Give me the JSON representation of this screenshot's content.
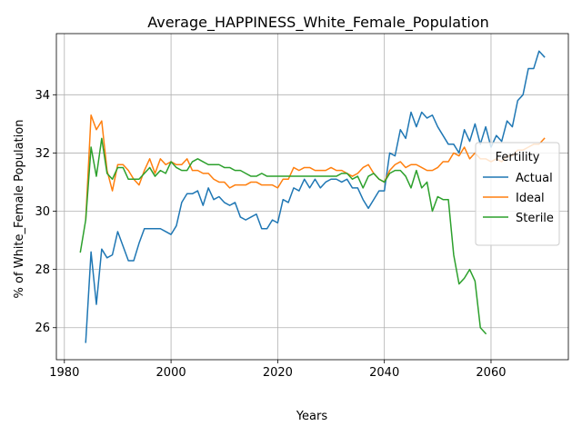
{
  "chart_data": {
    "type": "line",
    "title": "Average_HAPPINESS_White_Female_Population",
    "xlabel": "Years",
    "ylabel": "% of White_Female Population",
    "xlim": [
      1978.5,
      2074.5
    ],
    "ylim": [
      24.9,
      36.1
    ],
    "xticks": [
      1980,
      2000,
      2020,
      2040,
      2060
    ],
    "yticks": [
      26,
      28,
      30,
      32,
      34
    ],
    "grid": true,
    "legend": {
      "title": "Fertility",
      "placement": "center-right"
    },
    "series": [
      {
        "name": "Actual",
        "color": "#1f77b4",
        "x": [
          1984,
          1985,
          1986,
          1987,
          1988,
          1989,
          1990,
          1991,
          1992,
          1993,
          1994,
          1995,
          1996,
          1997,
          1998,
          1999,
          2000,
          2001,
          2002,
          2003,
          2004,
          2005,
          2006,
          2007,
          2008,
          2009,
          2010,
          2011,
          2012,
          2013,
          2014,
          2015,
          2016,
          2017,
          2018,
          2019,
          2020,
          2021,
          2022,
          2023,
          2024,
          2025,
          2026,
          2027,
          2028,
          2029,
          2030,
          2031,
          2032,
          2033,
          2034,
          2035,
          2036,
          2037,
          2038,
          2039,
          2040,
          2041,
          2042,
          2043,
          2044,
          2045,
          2046,
          2047,
          2048,
          2049,
          2050,
          2051,
          2052,
          2053,
          2054,
          2055,
          2056,
          2057,
          2058,
          2059,
          2060,
          2061,
          2062,
          2063,
          2064,
          2065,
          2066,
          2067,
          2068,
          2069,
          2070
        ],
        "values": [
          25.5,
          28.6,
          26.8,
          28.7,
          28.4,
          28.5,
          29.3,
          28.8,
          28.3,
          28.3,
          28.9,
          29.4,
          29.4,
          29.4,
          29.4,
          29.3,
          29.2,
          29.5,
          30.3,
          30.6,
          30.6,
          30.7,
          30.2,
          30.8,
          30.4,
          30.5,
          30.3,
          30.2,
          30.3,
          29.8,
          29.7,
          29.8,
          29.9,
          29.4,
          29.4,
          29.7,
          29.6,
          30.4,
          30.3,
          30.8,
          30.7,
          31.1,
          30.8,
          31.1,
          30.8,
          31.0,
          31.1,
          31.1,
          31.0,
          31.1,
          30.8,
          30.8,
          30.4,
          30.1,
          30.4,
          30.7,
          30.7,
          32.0,
          31.9,
          32.8,
          32.5,
          33.4,
          32.9,
          33.4,
          33.2,
          33.3,
          32.9,
          32.6,
          32.3,
          32.3,
          32.0,
          32.8,
          32.4,
          33.0,
          32.3,
          32.9,
          32.2,
          32.6,
          32.4,
          33.1,
          32.9,
          33.8,
          34.0,
          34.9,
          34.9,
          35.5,
          35.3
        ]
      },
      {
        "name": "Ideal",
        "color": "#ff7f0e",
        "x": [
          1984,
          1985,
          1986,
          1987,
          1988,
          1989,
          1990,
          1991,
          1992,
          1993,
          1994,
          1995,
          1996,
          1997,
          1998,
          1999,
          2000,
          2001,
          2002,
          2003,
          2004,
          2005,
          2006,
          2007,
          2008,
          2009,
          2010,
          2011,
          2012,
          2013,
          2014,
          2015,
          2016,
          2017,
          2018,
          2019,
          2020,
          2021,
          2022,
          2023,
          2024,
          2025,
          2026,
          2027,
          2028,
          2029,
          2030,
          2031,
          2032,
          2033,
          2034,
          2035,
          2036,
          2037,
          2038,
          2039,
          2040,
          2041,
          2042,
          2043,
          2044,
          2045,
          2046,
          2047,
          2048,
          2049,
          2050,
          2051,
          2052,
          2053,
          2054,
          2055,
          2056,
          2057,
          2058,
          2059,
          2060,
          2061,
          2062,
          2063,
          2064,
          2065,
          2066,
          2067,
          2068,
          2069,
          2070
        ],
        "values": [
          29.7,
          33.3,
          32.8,
          33.1,
          31.4,
          30.7,
          31.6,
          31.6,
          31.4,
          31.1,
          30.9,
          31.4,
          31.8,
          31.3,
          31.8,
          31.6,
          31.7,
          31.6,
          31.6,
          31.8,
          31.4,
          31.4,
          31.3,
          31.3,
          31.1,
          31.0,
          31.0,
          30.8,
          30.9,
          30.9,
          30.9,
          31.0,
          31.0,
          30.9,
          30.9,
          30.9,
          30.8,
          31.1,
          31.1,
          31.5,
          31.4,
          31.5,
          31.5,
          31.4,
          31.4,
          31.4,
          31.5,
          31.4,
          31.4,
          31.3,
          31.2,
          31.3,
          31.5,
          31.6,
          31.3,
          31.1,
          31.0,
          31.4,
          31.6,
          31.7,
          31.5,
          31.6,
          31.6,
          31.5,
          31.4,
          31.4,
          31.5,
          31.7,
          31.7,
          32.0,
          31.9,
          32.2,
          31.8,
          32.0,
          31.8,
          31.8,
          31.7,
          31.8,
          31.7,
          31.9,
          31.9,
          32.1,
          32.1,
          32.2,
          32.3,
          32.3,
          32.5
        ]
      },
      {
        "name": "Sterile",
        "color": "#2ca02c",
        "x": [
          1983,
          1984,
          1985,
          1986,
          1987,
          1988,
          1989,
          1990,
          1991,
          1992,
          1993,
          1994,
          1995,
          1996,
          1997,
          1998,
          1999,
          2000,
          2001,
          2002,
          2003,
          2004,
          2005,
          2006,
          2007,
          2008,
          2009,
          2010,
          2011,
          2012,
          2013,
          2014,
          2015,
          2016,
          2017,
          2018,
          2019,
          2020,
          2021,
          2022,
          2023,
          2024,
          2025,
          2026,
          2027,
          2028,
          2029,
          2030,
          2031,
          2032,
          2033,
          2034,
          2035,
          2036,
          2037,
          2038,
          2039,
          2040,
          2041,
          2042,
          2043,
          2044,
          2045,
          2046,
          2047,
          2048,
          2049,
          2050,
          2051,
          2052,
          2053,
          2054,
          2055,
          2056,
          2057,
          2058,
          2059
        ],
        "values": [
          28.6,
          29.7,
          32.2,
          31.2,
          32.5,
          31.3,
          31.1,
          31.5,
          31.5,
          31.1,
          31.1,
          31.1,
          31.3,
          31.5,
          31.2,
          31.4,
          31.3,
          31.7,
          31.5,
          31.4,
          31.4,
          31.7,
          31.8,
          31.7,
          31.6,
          31.6,
          31.6,
          31.5,
          31.5,
          31.4,
          31.4,
          31.3,
          31.2,
          31.2,
          31.3,
          31.2,
          31.2,
          31.2,
          31.2,
          31.2,
          31.2,
          31.2,
          31.2,
          31.2,
          31.2,
          31.2,
          31.2,
          31.2,
          31.2,
          31.3,
          31.3,
          31.1,
          31.2,
          30.8,
          31.2,
          31.3,
          31.1,
          31.0,
          31.3,
          31.4,
          31.4,
          31.2,
          30.8,
          31.4,
          30.8,
          31.0,
          30.0,
          30.5,
          30.4,
          30.4,
          28.5,
          27.5,
          27.7,
          28.0,
          27.6,
          26.0,
          25.8
        ]
      }
    ]
  }
}
